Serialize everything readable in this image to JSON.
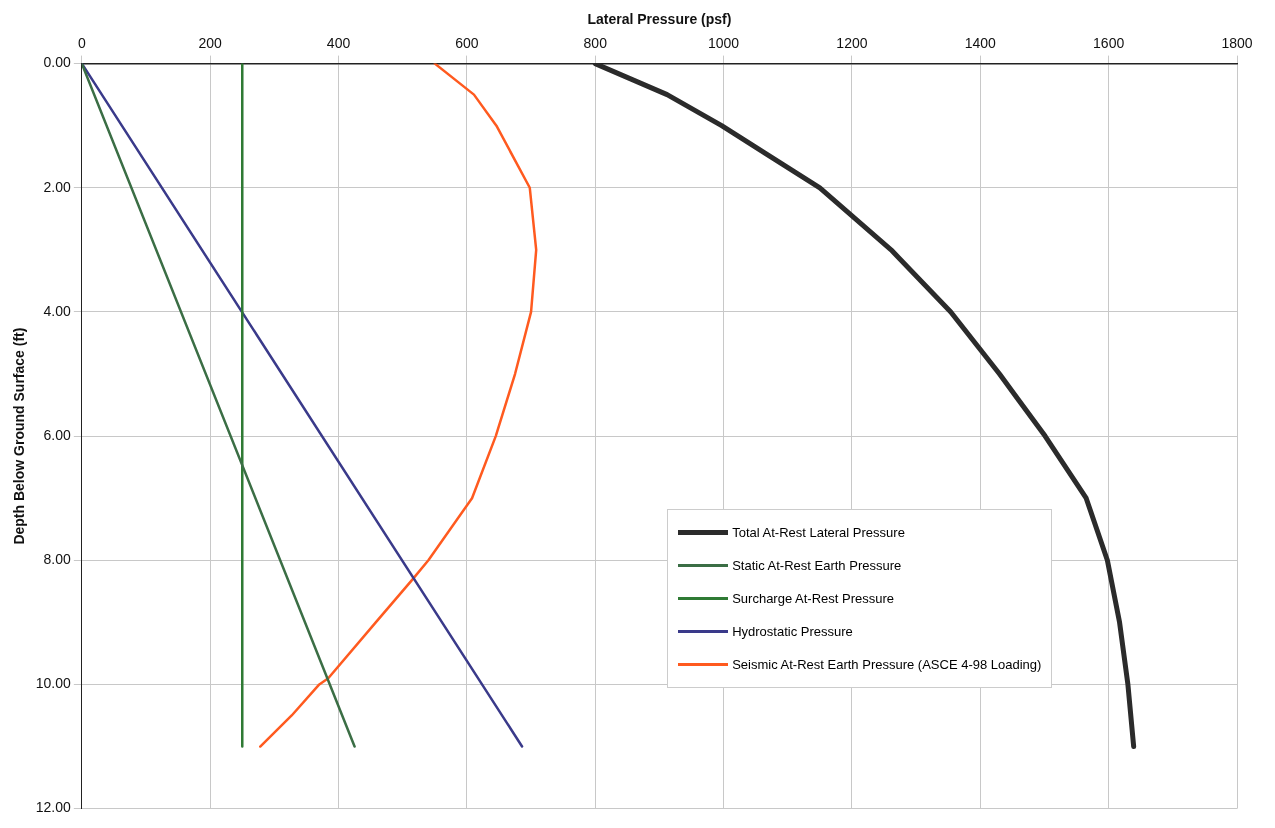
{
  "chart_data": {
    "type": "line",
    "xlabel": "Lateral Pressure (psf)",
    "ylabel": "Depth Below Ground Surface (ft)",
    "xlim": [
      0,
      1800
    ],
    "xticks": [
      0,
      200,
      400,
      600,
      800,
      1000,
      1200,
      1400,
      1600,
      1800
    ],
    "ylim": [
      12,
      0
    ],
    "yticks": [
      {
        "value": 0,
        "label": "0.00"
      },
      {
        "value": 2,
        "label": "2.00"
      },
      {
        "value": 4,
        "label": "4.00"
      },
      {
        "value": 6,
        "label": "6.00"
      },
      {
        "value": 8,
        "label": "8.00"
      },
      {
        "value": 10,
        "label": "10.00"
      },
      {
        "value": 12,
        "label": "12.00"
      }
    ],
    "grid": true,
    "legend": "bottom right",
    "marker": "none",
    "line_style": "solid",
    "series": [
      {
        "name": "Total At-Rest Lateral Pressure",
        "color": "#2b2b2b",
        "x": [
          800,
          912,
          997,
          1150,
          1261,
          1354,
          1430,
          1501,
          1565,
          1598,
          1617,
          1630,
          1639
        ],
        "values": [
          0,
          0.5,
          1,
          2,
          3,
          4,
          5,
          6,
          7,
          8,
          9,
          10,
          11
        ]
      },
      {
        "name": "Static At-Rest Earth Pressure",
        "color": "#3b6e45",
        "x": [
          0,
          425
        ],
        "values": [
          0,
          11
        ]
      },
      {
        "name": "Surcharge At-Rest Pressure",
        "color": "#2f7a34",
        "x": [
          250,
          250
        ],
        "values": [
          0,
          11
        ]
      },
      {
        "name": "Hydrostatic Pressure",
        "color": "#3a3a8a",
        "x": [
          0,
          686
        ],
        "values": [
          0,
          11
        ]
      },
      {
        "name": "Seismic At-Rest Earth Pressure (ASCE 4-98 Loading)",
        "color": "#ff5a1f",
        "x": [
          550,
          611,
          646,
          698,
          708,
          700,
          675,
          645,
          608,
          540,
          516,
          458,
          384,
          370,
          327,
          278
        ],
        "values": [
          0,
          0.5,
          1,
          2,
          3,
          4,
          5,
          6,
          7,
          8,
          8.3,
          9,
          9.9,
          10,
          10.5,
          11
        ]
      }
    ]
  }
}
